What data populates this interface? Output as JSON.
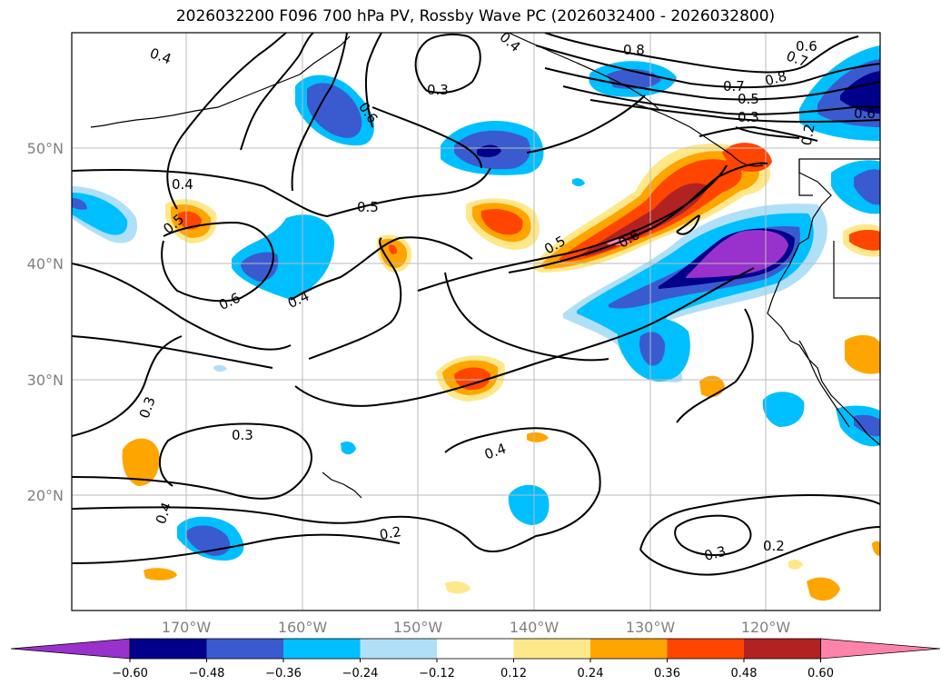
{
  "title": "2026032200 F096 700 hPa PV, Rossby Wave PC (2026032400 - 2026032800)",
  "lat_labels": [
    "50°N",
    "40°N",
    "30°N",
    "20°N"
  ],
  "lon_labels": [
    "170°W",
    "160°W",
    "150°W",
    "140°W",
    "130°W",
    "120°W"
  ],
  "colorbar": {
    "colors": [
      "#9932cc",
      "#00008b",
      "#3a5bd0",
      "#00bfff",
      "#b0e0f8",
      "#ffffff",
      "#ffe88a",
      "#ffa500",
      "#ff4500",
      "#b22222",
      "#ff82ab"
    ],
    "ticks": [
      "−0.60",
      "−0.48",
      "−0.36",
      "−0.24",
      "−0.12",
      "0.12",
      "0.24",
      "0.36",
      "0.48",
      "0.60"
    ]
  },
  "contour_labels": [
    "0.4",
    "0.4",
    "0.3",
    "0.6",
    "0.4",
    "0.5",
    "0.5",
    "0.6",
    "0.4",
    "0.3",
    "0.3",
    "0.4",
    "0.2",
    "0.4",
    "0.5",
    "0.6",
    "0.8",
    "0.6",
    "0.7",
    "0.8",
    "0.7",
    "0.5",
    "0.3",
    "0.6",
    "0.2",
    "0.3",
    "0.2"
  ]
}
